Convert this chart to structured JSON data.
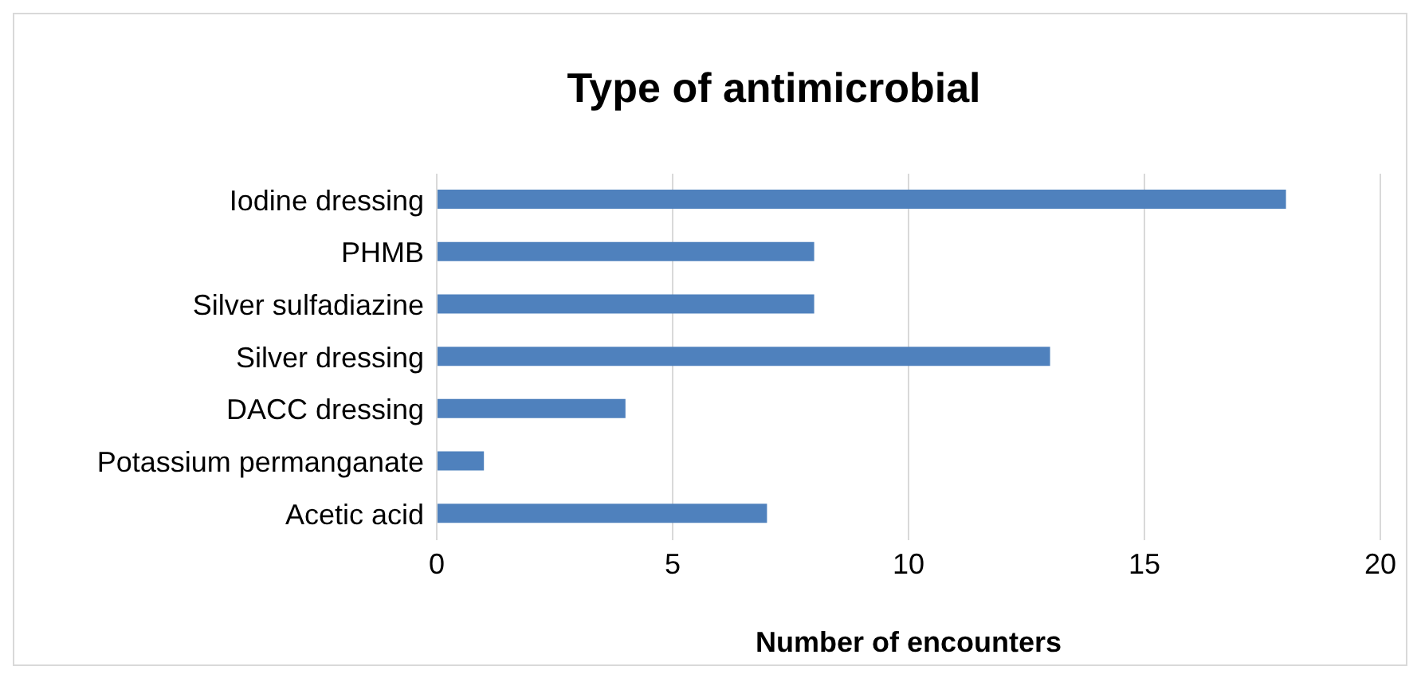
{
  "chart_data": {
    "type": "bar",
    "orientation": "horizontal",
    "title": "Type of antimicrobial",
    "xlabel": "Number of encounters",
    "categories": [
      "Iodine dressing",
      "PHMB",
      "Silver sulfadiazine",
      "Silver dressing",
      "DACC dressing",
      "Potassium permanganate",
      "Acetic acid"
    ],
    "values": [
      18,
      8,
      8,
      13,
      4,
      1,
      7
    ],
    "color": "#4f81bd",
    "xlim": [
      0,
      20
    ],
    "xticks": [
      0,
      5,
      10,
      15,
      20
    ],
    "grid": "x"
  }
}
